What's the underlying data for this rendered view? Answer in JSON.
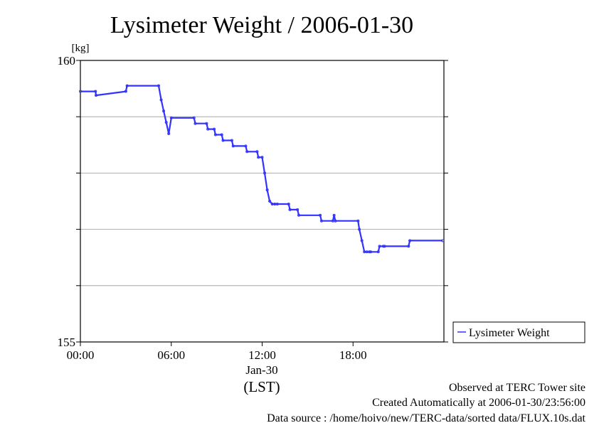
{
  "chart_data": {
    "type": "line",
    "title": "Lysimeter Weight / 2006-01-30",
    "ylabel": "[kg]",
    "ylim": [
      155,
      160
    ],
    "yticks": [
      155,
      156,
      157,
      158,
      159,
      160
    ],
    "ytick_labels": [
      "155",
      "",
      "",
      "",
      "",
      "160"
    ],
    "grid": true,
    "xlim": [
      "00:00",
      "24:00"
    ],
    "xticks": [
      "00:00",
      "06:00",
      "12:00",
      "18:00"
    ],
    "x_date_label": "Jan-30",
    "x_timezone_label": "(LST)",
    "legend_position": "right",
    "series": [
      {
        "name": "Lysimeter Weight",
        "color": "#3333ff",
        "x": [
          "00:00",
          "01:00",
          "01:02",
          "03:00",
          "03:05",
          "05:10",
          "05:20",
          "05:30",
          "05:40",
          "05:50",
          "06:00",
          "07:30",
          "07:35",
          "08:20",
          "08:25",
          "08:50",
          "08:55",
          "09:20",
          "09:25",
          "10:00",
          "10:05",
          "10:55",
          "11:00",
          "11:40",
          "11:45",
          "12:00",
          "12:10",
          "12:20",
          "12:30",
          "12:40",
          "12:50",
          "13:00",
          "13:45",
          "13:50",
          "14:20",
          "14:25",
          "15:50",
          "15:55",
          "16:40",
          "16:45",
          "16:50",
          "18:20",
          "18:25",
          "18:35",
          "18:45",
          "18:55",
          "19:05",
          "19:10",
          "19:40",
          "19:45",
          "20:00",
          "20:05",
          "21:40",
          "21:45",
          "23:55"
        ],
        "y": [
          159.45,
          159.45,
          159.38,
          159.45,
          159.55,
          159.55,
          159.3,
          159.1,
          158.9,
          158.7,
          158.98,
          158.98,
          158.88,
          158.88,
          158.78,
          158.78,
          158.68,
          158.68,
          158.58,
          158.58,
          158.48,
          158.48,
          158.38,
          158.38,
          158.28,
          158.28,
          158.0,
          157.7,
          157.5,
          157.45,
          157.45,
          157.45,
          157.45,
          157.35,
          157.35,
          157.25,
          157.25,
          157.15,
          157.15,
          157.25,
          157.15,
          157.15,
          157.0,
          156.8,
          156.6,
          156.6,
          156.6,
          156.6,
          156.6,
          156.7,
          156.7,
          156.7,
          156.7,
          156.8,
          156.8
        ]
      }
    ]
  },
  "footer": {
    "line1": "Observed at TERC Tower site",
    "line2": "Created Automatically at 2006-01-30/23:56:00",
    "line3": "Data source : /home/hoivo/new/TERC-data/sorted  data/FLUX.10s.dat"
  }
}
